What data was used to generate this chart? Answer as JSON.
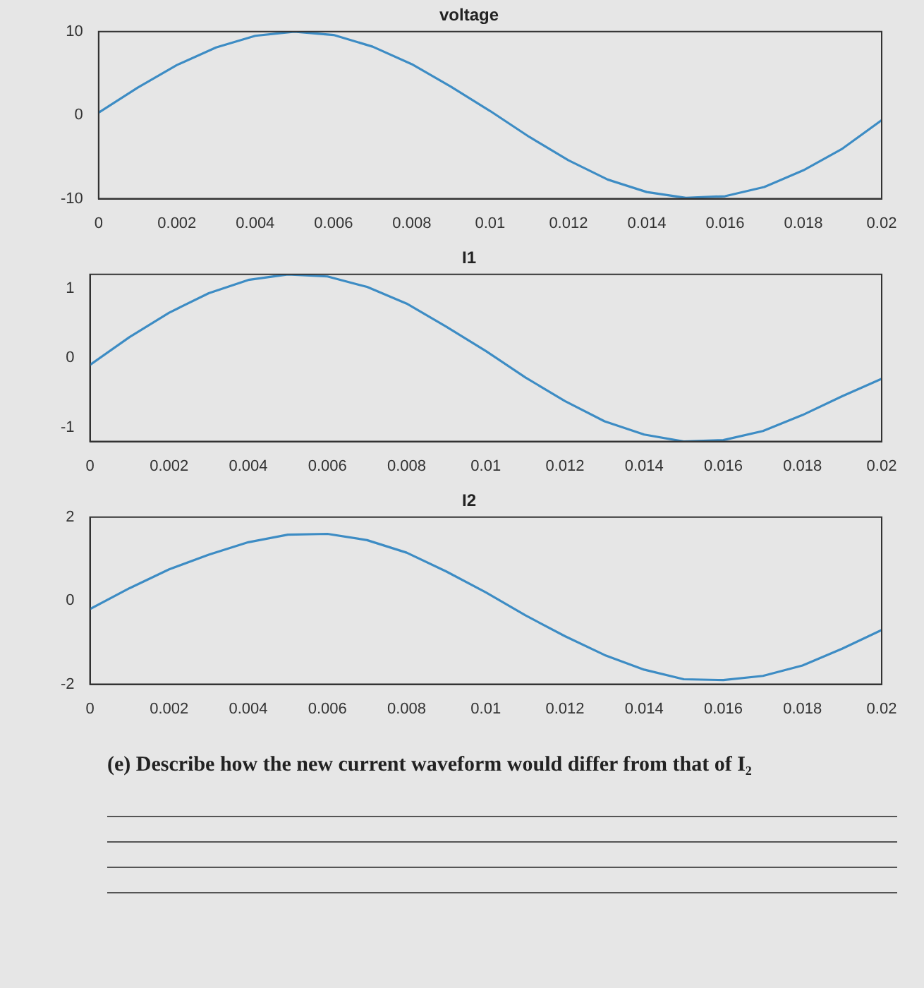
{
  "chart_data": [
    {
      "type": "line",
      "title": "voltage",
      "x": [
        0,
        0.001,
        0.002,
        0.003,
        0.004,
        0.005,
        0.006,
        0.007,
        0.008,
        0.009,
        0.01,
        0.011,
        0.012,
        0.013,
        0.014,
        0.015,
        0.016,
        0.017,
        0.018,
        0.019,
        0.02
      ],
      "series": [
        {
          "color": "#3d8cc4",
          "values": [
            0.3,
            3.3,
            6.0,
            8.1,
            9.5,
            10,
            9.6,
            8.2,
            6.1,
            3.4,
            0.5,
            -2.6,
            -5.4,
            -7.7,
            -9.2,
            -9.9,
            -9.7,
            -8.6,
            -6.6,
            -4.0,
            -0.6
          ]
        }
      ],
      "xlim": [
        0,
        0.02
      ],
      "xticks": [
        0,
        0.002,
        0.004,
        0.006,
        0.008,
        0.01,
        0.012,
        0.014,
        0.016,
        0.018,
        0.02
      ],
      "ylim": [
        -10,
        10
      ],
      "yticks": [
        -10,
        0,
        10
      ],
      "grid": false,
      "legend": false,
      "marker": "none",
      "line_style": "solid"
    },
    {
      "type": "line",
      "title": "I1",
      "x": [
        0,
        0.001,
        0.002,
        0.003,
        0.004,
        0.005,
        0.006,
        0.007,
        0.008,
        0.009,
        0.01,
        0.011,
        0.012,
        0.013,
        0.014,
        0.015,
        0.016,
        0.017,
        0.018,
        0.019,
        0.02
      ],
      "series": [
        {
          "color": "#3d8cc4",
          "values": [
            -0.1,
            0.3,
            0.65,
            0.93,
            1.12,
            1.2,
            1.17,
            1.02,
            0.78,
            0.45,
            0.1,
            -0.28,
            -0.62,
            -0.91,
            -1.1,
            -1.2,
            -1.18,
            -1.05,
            -0.82,
            -0.55,
            -0.3
          ]
        }
      ],
      "xlim": [
        0,
        0.02
      ],
      "xticks": [
        0,
        0.002,
        0.004,
        0.006,
        0.008,
        0.01,
        0.012,
        0.014,
        0.016,
        0.018,
        0.02
      ],
      "ylim": [
        -1.2,
        1.2
      ],
      "yticks": [
        -1,
        0,
        1
      ],
      "grid": false,
      "legend": false,
      "marker": "none",
      "line_style": "solid"
    },
    {
      "type": "line",
      "title": "I2",
      "x": [
        0,
        0.001,
        0.002,
        0.003,
        0.004,
        0.005,
        0.006,
        0.007,
        0.008,
        0.009,
        0.01,
        0.011,
        0.012,
        0.013,
        0.014,
        0.015,
        0.016,
        0.017,
        0.018,
        0.019,
        0.02
      ],
      "series": [
        {
          "color": "#3d8cc4",
          "values": [
            -0.2,
            0.3,
            0.75,
            1.1,
            1.4,
            1.58,
            1.6,
            1.45,
            1.15,
            0.7,
            0.2,
            -0.35,
            -0.85,
            -1.3,
            -1.65,
            -1.88,
            -1.9,
            -1.8,
            -1.55,
            -1.15,
            -0.7
          ]
        }
      ],
      "xlim": [
        0,
        0.02
      ],
      "xticks": [
        0,
        0.002,
        0.004,
        0.006,
        0.008,
        0.01,
        0.012,
        0.014,
        0.016,
        0.018,
        0.02
      ],
      "ylim": [
        -2,
        2
      ],
      "yticks": [
        -2,
        0,
        2
      ],
      "grid": false,
      "legend": false,
      "marker": "none",
      "line_style": "solid",
      "annotations": [
        "(e) Describe how the new current waveform would differ from that of I₂"
      ]
    }
  ]
}
